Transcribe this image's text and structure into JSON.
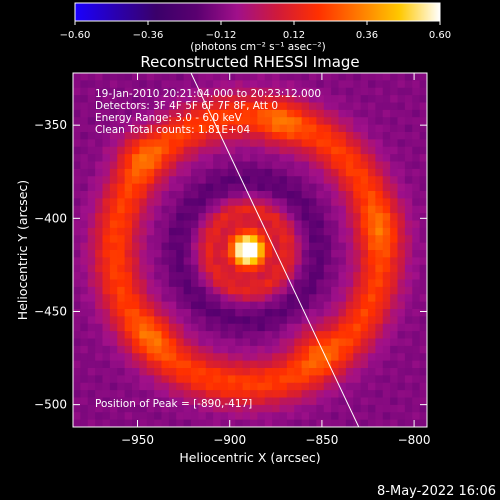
{
  "chart_data": {
    "type": "heatmap",
    "title": "Reconstructed RHESSI Image",
    "xlabel": "Heliocentric X (arcsec)",
    "ylabel": "Heliocentric Y (arcsec)",
    "xlim": [
      -985,
      -793
    ],
    "ylim": [
      -512,
      -322
    ],
    "x_ticks": [
      -950,
      -900,
      -850,
      -800
    ],
    "y_ticks": [
      -350,
      -400,
      -450,
      -500
    ],
    "x_tick_labels": [
      "−950",
      "−900",
      "−850",
      "−800"
    ],
    "y_tick_labels": [
      "−350",
      "−400",
      "−450",
      "−500"
    ],
    "colorbar": {
      "range": [
        -0.6,
        0.6
      ],
      "ticks": [
        -0.6,
        -0.36,
        -0.12,
        0.12,
        0.36,
        0.6
      ],
      "tick_labels": [
        "−0.60",
        "−0.36",
        "−0.12",
        "0.12",
        "0.36",
        "0.60"
      ],
      "unit_text": "(photons cm⁻² s⁻¹ asec⁻²)",
      "stops": [
        "#1a00ff",
        "#2a00b0",
        "#3a006a",
        "#5a0070",
        "#a0108a",
        "#d01a3a",
        "#ff3000",
        "#ff7a00",
        "#ffc800",
        "#ffffff"
      ]
    },
    "annotations": [
      "19-Jan-2010 20:21:04.000 to 20:23:12.000",
      "Detectors: 3F 4F 5F 6F 7F 8F, Att 0",
      "Energy Range: 3.0 - 6.0 keV",
      "Clean     Total counts: 1.81E+04"
    ],
    "peak_label": "Position of Peak = [-890,-417]",
    "peak": {
      "x": -890,
      "y": -417,
      "value": 0.6
    },
    "limb_line": [
      {
        "x": -921,
        "y": -322
      },
      {
        "x": -830,
        "y": -512
      }
    ],
    "image_model": {
      "background": -0.12,
      "components": [
        {
          "x": -890,
          "y": -417,
          "sigma": 6,
          "amp": 0.72
        },
        {
          "x": -890,
          "y": -417,
          "sigma": 14,
          "amp": 0.22
        },
        {
          "x": -890,
          "y": -417,
          "ring_radius": 22,
          "width": 4,
          "amp": 0.18
        },
        {
          "x": -890,
          "y": -417,
          "ring_radius": 38,
          "width": 5,
          "amp": -0.08
        },
        {
          "x": -890,
          "y": -417,
          "ring_radius": 72,
          "width": 9,
          "amp": 0.34
        },
        {
          "x": -950,
          "y": -365,
          "sigma": 9,
          "amp": 0.14
        },
        {
          "x": -940,
          "y": -462,
          "sigma": 9,
          "amp": 0.12
        },
        {
          "x": -855,
          "y": -468,
          "sigma": 9,
          "amp": 0.14
        },
        {
          "x": -820,
          "y": -405,
          "sigma": 10,
          "amp": 0.1
        },
        {
          "x": -872,
          "y": -350,
          "sigma": 8,
          "amp": 0.12
        }
      ]
    }
  },
  "footer": {
    "date": "8-May-2022 16:06"
  }
}
